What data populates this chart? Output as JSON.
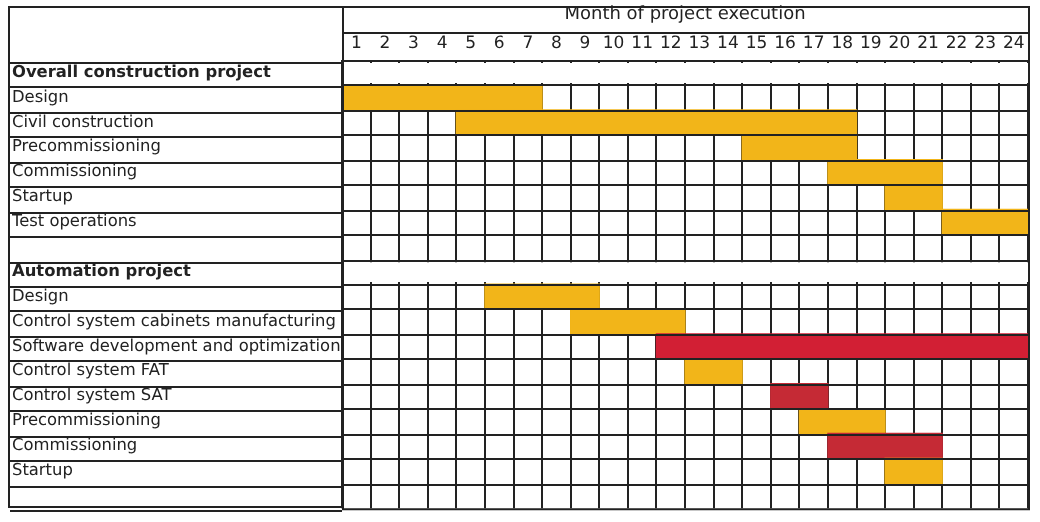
{
  "chart_data": {
    "type": "bar",
    "orientation": "horizontal",
    "xlabel": "Month of project execution",
    "categories": [
      "Overall construction project",
      "Design",
      "Civil construction",
      "Precommissioning",
      "Commissioning",
      "Startup",
      "Test operations",
      null,
      "Automation project",
      "Design",
      "Control system cabinets manufacturing",
      "Software development and optimization",
      "Control system FAT",
      "Control system SAT",
      "Precommissioning",
      "Commissioning",
      "Startup",
      null
    ],
    "base": [
      null,
      0,
      4,
      14,
      17,
      19,
      21,
      null,
      null,
      5,
      8,
      11,
      12,
      15,
      16,
      17,
      19,
      null
    ],
    "values": [
      null,
      7,
      14,
      4,
      4,
      2,
      3,
      null,
      null,
      4,
      4,
      13,
      2,
      2,
      3,
      4,
      2,
      null
    ],
    "colors": [
      null,
      "#f2b519",
      "#f2b519",
      "#f2b519",
      "#f2b519",
      "#f2b519",
      "#f2b519",
      null,
      null,
      "#f2b519",
      "#f2b519",
      "#d21f34",
      "#f2b519",
      "#c52a35",
      "#f2b519",
      "#c52a35",
      "#f2b519",
      null
    ],
    "xlim": [
      0,
      24
    ],
    "xticks": [
      {
        "value": 0.5,
        "label": "1"
      },
      {
        "value": 1.5,
        "label": "2"
      },
      {
        "value": 2.5,
        "label": "3"
      },
      {
        "value": 3.5,
        "label": "4"
      },
      {
        "value": 4.5,
        "label": "5"
      },
      {
        "value": 5.5,
        "label": "6"
      },
      {
        "value": 6.5,
        "label": "7"
      },
      {
        "value": 7.5,
        "label": "8"
      },
      {
        "value": 8.5,
        "label": "9"
      },
      {
        "value": 9.5,
        "label": "10"
      },
      {
        "value": 10.5,
        "label": "11"
      },
      {
        "value": 11.5,
        "label": "12"
      },
      {
        "value": 12.5,
        "label": "13"
      },
      {
        "value": 13.5,
        "label": "14"
      },
      {
        "value": 14.5,
        "label": "15"
      },
      {
        "value": 15.5,
        "label": "16"
      },
      {
        "value": 16.5,
        "label": "17"
      },
      {
        "value": 17.5,
        "label": "18"
      },
      {
        "value": 18.5,
        "label": "19"
      },
      {
        "value": 19.5,
        "label": "20"
      },
      {
        "value": 20.5,
        "label": "21"
      },
      {
        "value": 21.5,
        "label": "22"
      },
      {
        "value": 22.5,
        "label": "23"
      },
      {
        "value": 23.5,
        "label": "24"
      }
    ],
    "grid": true
  }
}
